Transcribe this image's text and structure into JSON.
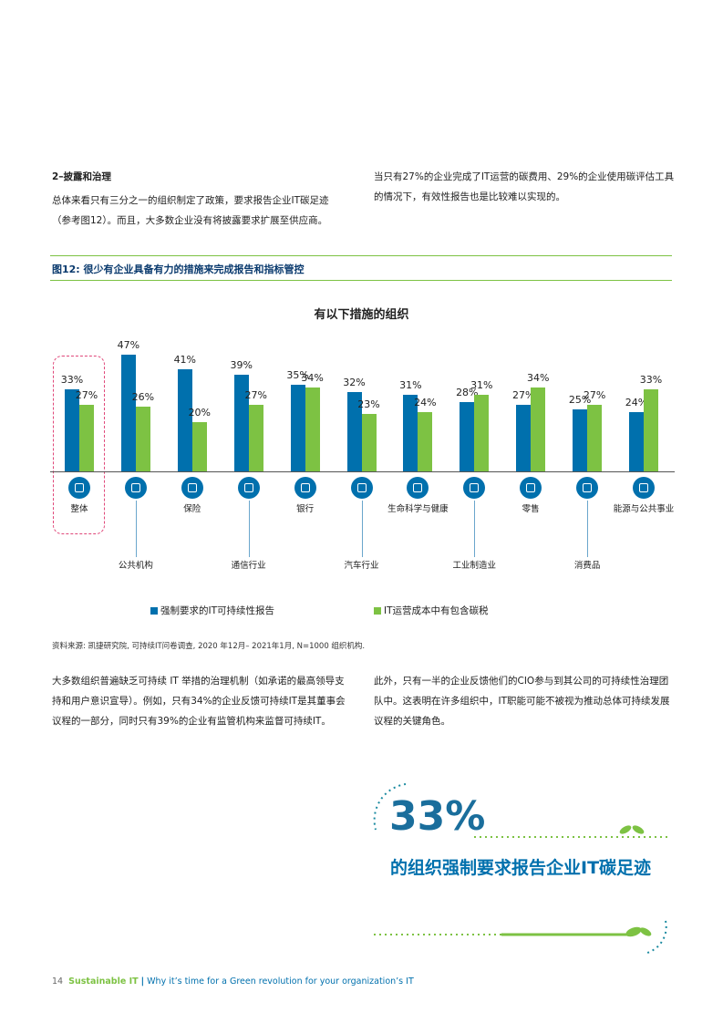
{
  "intro": {
    "heading": "2–披露和治理",
    "left": "总体来看只有三分之一的组织制定了政策，要求报告企业IT碳足迹（参考图12）。而且，大多数企业没有将披露要求扩展至供应商。",
    "right": "当只有27%的企业完成了IT运营的碳费用、29%的企业使用碳评估工具的情况下，有效性报告也是比较难以实现的。"
  },
  "figure_label": "图12: 很少有企业具备有力的措施来完成报告和指标管控",
  "chart_data": {
    "type": "bar",
    "title": "有以下措施的组织",
    "categories": [
      "整体",
      "公共机构",
      "保险",
      "通信行业",
      "银行",
      "汽车行业",
      "生命科学与健康",
      "工业制造业",
      "零售",
      "消费品",
      "能源与公共事业"
    ],
    "series": [
      {
        "name": "强制要求的IT可持续性报告",
        "color": "#0070ad",
        "values": [
          33,
          47,
          41,
          39,
          35,
          32,
          31,
          28,
          27,
          25,
          24
        ],
        "value_labels": [
          "33%",
          "47%",
          "41%",
          "39%",
          "35%",
          "32%",
          "31%",
          "28%",
          "27%",
          "25%",
          "24%"
        ]
      },
      {
        "name": "IT运营成本中有包含碳税",
        "color": "#7dc243",
        "values": [
          27,
          26,
          20,
          27,
          34,
          23,
          24,
          31,
          34,
          27,
          33
        ],
        "value_labels": [
          "27%",
          "26%",
          "20%",
          "27%",
          "34%",
          "23%",
          "24%",
          "31%",
          "34%",
          "27%",
          "33%"
        ]
      }
    ],
    "legend": "bottom"
  },
  "source": "资料来源: 凯捷研究院, 可持续IT问卷调查, 2020 年12月– 2021年1月, N=1000 组织机构.",
  "body": {
    "left": "大多数组织普遍缺乏可持续 IT 举措的治理机制（如承诺的最高领导支持和用户意识宣导）。例如，只有34%的企业反馈可持续IT是其董事会议程的一部分，同时只有39%的企业有监管机构来监督可持续IT。",
    "right": "此外，只有一半的企业反馈他们的CIO参与到其公司的可持续性治理团队中。这表明在许多组织中，IT职能可能不被视为推动总体可持续发展议程的关键角色。"
  },
  "callout": {
    "figure": "33%",
    "text": "的组织强制要求报告企业IT碳足迹"
  },
  "footer": {
    "page": "14",
    "brand": "Sustainable IT",
    "separator": "|",
    "title": "Why it’s time for a Green revolution for your organization’s IT"
  }
}
